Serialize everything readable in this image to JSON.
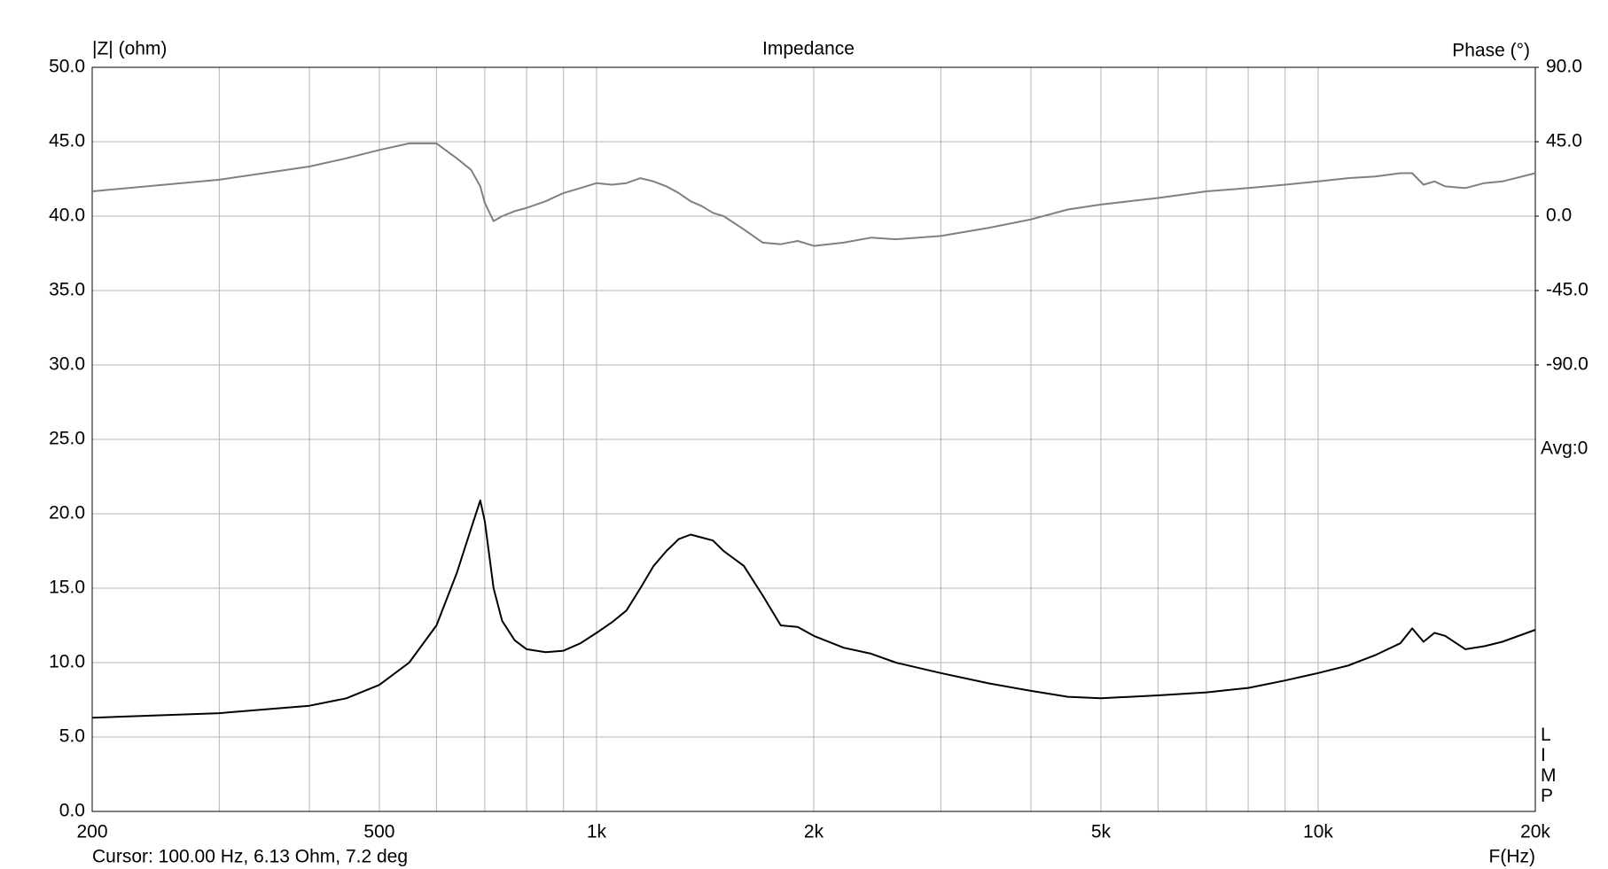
{
  "chart_data": {
    "type": "line",
    "title": "Impedance",
    "y_label": "|Z| (ohm)",
    "y2_label": "Phase (°)",
    "x_label": "F(Hz)",
    "annotations": [
      "Avg:0",
      "LIMP",
      "Cursor: 100.00 Hz, 6.13 Ohm, 7.2 deg"
    ],
    "x_scale": "log",
    "grid": true,
    "x": [
      200,
      300,
      400,
      450,
      500,
      550,
      600,
      640,
      670,
      690,
      700,
      720,
      740,
      770,
      800,
      850,
      900,
      950,
      1000,
      1050,
      1100,
      1150,
      1200,
      1250,
      1300,
      1350,
      1400,
      1450,
      1500,
      1600,
      1700,
      1800,
      1900,
      2000,
      2200,
      2400,
      2600,
      3000,
      3500,
      4000,
      4500,
      5000,
      6000,
      7000,
      8000,
      9000,
      10000,
      11000,
      12000,
      13000,
      13500,
      14000,
      14500,
      15000,
      16000,
      17000,
      18000,
      20000
    ],
    "series": [
      {
        "color": "#000000",
        "values": [
          6.3,
          6.6,
          7.1,
          7.6,
          8.5,
          10.0,
          12.5,
          16,
          19,
          20.9,
          19.5,
          15,
          12.8,
          11.5,
          10.9,
          10.7,
          10.8,
          11.3,
          12,
          12.7,
          13.5,
          15,
          16.5,
          17.5,
          18.3,
          18.6,
          18.4,
          18.2,
          17.5,
          16.5,
          14.5,
          12.5,
          12.4,
          11.8,
          11,
          10.6,
          10,
          9.3,
          8.6,
          8.1,
          7.7,
          7.6,
          7.8,
          8.0,
          8.3,
          8.8,
          9.3,
          9.8,
          10.5,
          11.3,
          12.3,
          11.4,
          12.0,
          11.8,
          10.9,
          11.1,
          11.4,
          12.2
        ]
      },
      {
        "color": "#808080",
        "axis": "y2",
        "values": [
          15,
          22,
          30,
          35,
          40,
          44,
          44,
          35,
          28,
          18,
          8,
          -3,
          0,
          3,
          5,
          9,
          14,
          17,
          20,
          19,
          20,
          23,
          21,
          18,
          14,
          9,
          6,
          2,
          0,
          -8,
          -16,
          -17,
          -15,
          -18,
          -16,
          -13,
          -14,
          -12,
          -7,
          -2,
          4,
          7,
          11,
          15,
          17,
          19,
          21,
          23,
          24,
          26,
          26,
          19,
          21,
          18,
          17,
          20,
          21,
          26
        ]
      }
    ],
    "xlim": [
      200,
      20000
    ],
    "xticks": [
      200,
      500,
      {
        "value": 1000,
        "label": "1k"
      },
      {
        "value": 2000,
        "label": "2k"
      },
      {
        "value": 5000,
        "label": "5k"
      },
      {
        "value": 10000,
        "label": "10k"
      },
      {
        "value": 20000,
        "label": "20k"
      }
    ],
    "xminor": [
      300,
      400,
      600,
      700,
      800,
      900,
      3000,
      4000,
      6000,
      7000,
      8000,
      9000
    ],
    "ylim": [
      0,
      50
    ],
    "yticks": [
      {
        "value": 0,
        "label": "0.0"
      },
      {
        "value": 5,
        "label": "5.0"
      },
      {
        "value": 10,
        "label": "10.0"
      },
      {
        "value": 15,
        "label": "15.0"
      },
      {
        "value": 20,
        "label": "20.0"
      },
      {
        "value": 25,
        "label": "25.0"
      },
      {
        "value": 30,
        "label": "30.0"
      },
      {
        "value": 35,
        "label": "35.0"
      },
      {
        "value": 40,
        "label": "40.0"
      },
      {
        "value": 45,
        "label": "45.0"
      },
      {
        "value": 50,
        "label": "50.0"
      }
    ],
    "y2lim": [
      -360,
      90
    ],
    "y2ticks": [
      {
        "value": -90,
        "label": "-90.0"
      },
      {
        "value": -45,
        "label": "-45.0"
      },
      {
        "value": 0,
        "label": "0.0"
      },
      {
        "value": 45,
        "label": "45.0"
      },
      {
        "value": 90,
        "label": "90.0"
      }
    ]
  }
}
